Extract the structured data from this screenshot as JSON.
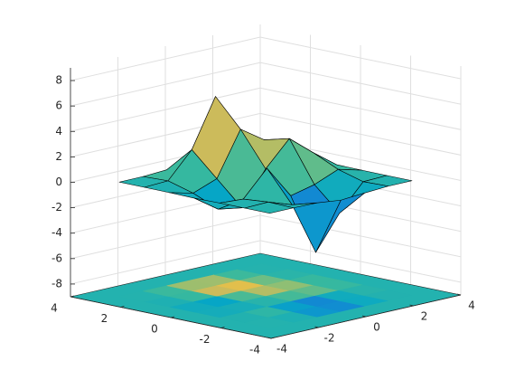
{
  "chart_data": {
    "type": "surface",
    "x": [
      -3,
      -2,
      -1,
      0,
      1,
      2,
      3
    ],
    "y": [
      -3,
      -2,
      -1,
      0,
      1,
      2,
      3
    ],
    "z": [
      [
        0.0,
        0.0,
        -0.03,
        -0.25,
        -0.11,
        0.0,
        0.0
      ],
      [
        0.0,
        0.05,
        -0.59,
        -4.76,
        -2.1,
        -0.06,
        0.0
      ],
      [
        -0.01,
        -0.13,
        1.86,
        -0.72,
        -0.27,
        0.5,
        0.01
      ],
      [
        -0.04,
        -1.33,
        -1.65,
        0.98,
        2.94,
        1.41,
        0.03
      ],
      [
        -0.01,
        -0.48,
        0.23,
        3.69,
        2.43,
        0.58,
        0.01
      ],
      [
        0.0,
        0.08,
        2.1,
        5.86,
        2.21,
        0.13,
        0.0
      ],
      [
        0.0,
        0.01,
        0.11,
        0.3,
        0.11,
        0.01,
        0.0
      ]
    ],
    "xlim": [
      -4,
      4
    ],
    "ylim": [
      -4,
      4
    ],
    "zlim": [
      -9,
      9
    ],
    "xticks": [
      -4,
      -2,
      0,
      2,
      4
    ],
    "yticks": [
      -4,
      -2,
      0,
      2,
      4
    ],
    "zticks": [
      -8,
      -6,
      -4,
      -2,
      0,
      2,
      4,
      6,
      8
    ],
    "grid": true,
    "colormap": [
      "#352a87",
      "#0363e1",
      "#1485d4",
      "#06a7c6",
      "#38b99e",
      "#92bf73",
      "#d9ba56",
      "#fcce2e",
      "#f9fb0e"
    ],
    "edge_color": "#000000"
  }
}
